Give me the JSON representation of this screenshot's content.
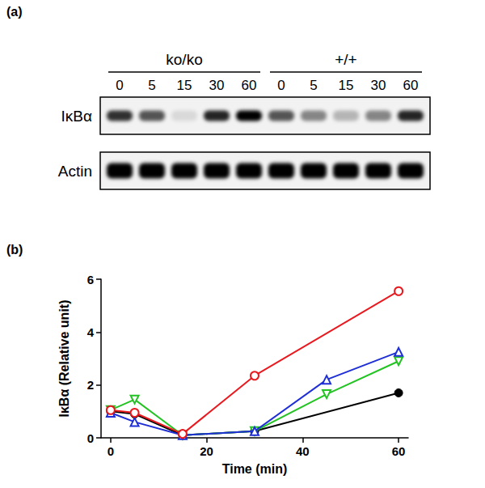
{
  "blot": {
    "panel": "(a)",
    "groups": [
      {
        "label": "ko/ko",
        "lanes": [
          0,
          5,
          15,
          30,
          60
        ]
      },
      {
        "label": "+/+",
        "lanes": [
          0,
          5,
          15,
          30,
          60
        ]
      }
    ],
    "rows": [
      {
        "label": "IκBα",
        "bands": [
          0.8,
          0.65,
          0.1,
          0.85,
          1.0,
          0.65,
          0.45,
          0.25,
          0.45,
          0.85
        ]
      },
      {
        "label": "Actin",
        "bands": [
          1.0,
          1.0,
          1.0,
          1.0,
          1.0,
          1.0,
          1.0,
          1.0,
          1.0,
          1.0
        ]
      }
    ]
  },
  "chart_data": {
    "type": "line",
    "panel": "(b)",
    "x_label": "Time (min)",
    "y_label": "IκBα (Relative unit)",
    "xlim": [
      -2,
      62
    ],
    "xticks": [
      0,
      20,
      40,
      60
    ],
    "ylim": [
      0,
      6
    ],
    "yticks": [
      0,
      2,
      4,
      6
    ],
    "grid": false,
    "series": [
      {
        "color": "#e8191f",
        "marker": "open_circle",
        "x": [
          0,
          5,
          15,
          30,
          60
        ],
        "values": [
          1.05,
          0.95,
          0.15,
          2.35,
          5.55
        ]
      },
      {
        "color": "#1f2fd6",
        "marker": "open_triangle_up",
        "x": [
          0,
          5,
          15,
          30,
          45,
          60
        ],
        "values": [
          0.95,
          0.6,
          0.1,
          0.25,
          2.2,
          3.25
        ]
      },
      {
        "color": "#22c322",
        "marker": "open_triangle_down",
        "x": [
          0,
          5,
          15,
          30,
          45,
          60
        ],
        "values": [
          1.05,
          1.45,
          0.1,
          0.25,
          1.65,
          2.9
        ]
      },
      {
        "color": "#000000",
        "marker": "filled_circle",
        "x": [
          0,
          5,
          15,
          30,
          60
        ],
        "values": [
          1.0,
          0.9,
          0.1,
          0.25,
          1.7
        ]
      }
    ]
  }
}
